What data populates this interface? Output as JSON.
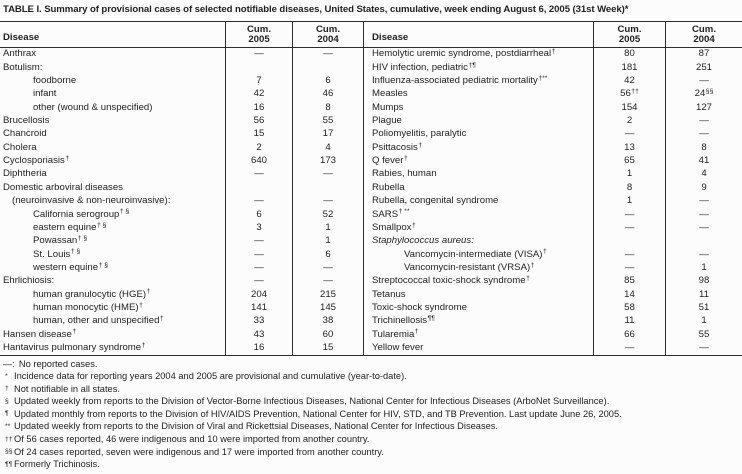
{
  "title": "TABLE I. Summary of provisional cases of selected notifiable diseases, United States, cumulative, week ending August 6, 2005 (31st Week)*",
  "columns": {
    "disease": "Disease",
    "cum_label": "Cum.",
    "y2005": "2005",
    "y2004": "2004"
  },
  "colors": {
    "text": "#1f1f1f",
    "line": "#2e2e2e",
    "background": "#fcfcfc"
  },
  "tables": [
    {
      "side": "left",
      "rows": [
        {
          "label": "Anthrax",
          "v2005": "—",
          "v2004": "—"
        },
        {
          "label": "Botulism:",
          "v2005": "",
          "v2004": ""
        },
        {
          "label": "foodborne",
          "indent": 2,
          "v2005": "7",
          "v2004": "6"
        },
        {
          "label": "infant",
          "indent": 2,
          "v2005": "42",
          "v2004": "46"
        },
        {
          "label": "other (wound & unspecified)",
          "indent": 2,
          "v2005": "16",
          "v2004": "8"
        },
        {
          "label": "Brucellosis",
          "v2005": "56",
          "v2004": "55"
        },
        {
          "label": "Chancroid",
          "v2005": "15",
          "v2004": "17"
        },
        {
          "label": "Cholera",
          "v2005": "2",
          "v2004": "4"
        },
        {
          "label": "Cyclosporiasis",
          "label_sup": "†",
          "v2005": "640",
          "v2004": "173"
        },
        {
          "label": "Diphtheria",
          "v2005": "—",
          "v2004": "—"
        },
        {
          "label": "Domestic arboviral diseases",
          "v2005": "",
          "v2004": ""
        },
        {
          "label": "(neuroinvasive & non-neuroinvasive):",
          "indent": 1,
          "v2005": "—",
          "v2004": "—"
        },
        {
          "label": "California serogroup",
          "label_sup": "† §",
          "indent": 2,
          "v2005": "6",
          "v2004": "52"
        },
        {
          "label": "eastern equine",
          "label_sup": "† §",
          "indent": 2,
          "v2005": "3",
          "v2004": "1"
        },
        {
          "label": "Powassan",
          "label_sup": "† §",
          "indent": 2,
          "v2005": "—",
          "v2004": "1"
        },
        {
          "label": "St. Louis",
          "label_sup": "† §",
          "indent": 2,
          "v2005": "—",
          "v2004": "6"
        },
        {
          "label": "western equine",
          "label_sup": "† §",
          "indent": 2,
          "v2005": "—",
          "v2004": "—"
        },
        {
          "label": "Ehrlichiosis:",
          "v2005": "—",
          "v2004": "—"
        },
        {
          "label": "human granulocytic (HGE)",
          "label_sup": "†",
          "indent": 2,
          "v2005": "204",
          "v2004": "215"
        },
        {
          "label": "human monocytic (HME)",
          "label_sup": "†",
          "indent": 2,
          "v2005": "141",
          "v2004": "145"
        },
        {
          "label": "human, other and unspecified ",
          "label_sup": "†",
          "indent": 2,
          "v2005": "33",
          "v2004": "38"
        },
        {
          "label": "Hansen disease",
          "label_sup": "†",
          "v2005": "43",
          "v2004": "60"
        },
        {
          "label": "Hantavirus pulmonary syndrome",
          "label_sup": "†",
          "v2005": "16",
          "v2004": "15"
        }
      ]
    },
    {
      "side": "right",
      "rows": [
        {
          "label": "Hemolytic uremic syndrome, postdiarrheal",
          "label_sup": "†",
          "v2005": "80",
          "v2004": "87"
        },
        {
          "label": "HIV infection, pediatric",
          "label_sup": "†¶",
          "v2005": "181",
          "v2004": "251"
        },
        {
          "label": "Influenza-associated pediatric mortality",
          "label_sup": "†**",
          "v2005": "42",
          "v2004": "—"
        },
        {
          "label": "Measles",
          "v2005": "56",
          "v2005_sup": "††",
          "v2004": "24",
          "v2004_sup": "§§"
        },
        {
          "label": "Mumps",
          "v2005": "154",
          "v2004": "127"
        },
        {
          "label": "Plague",
          "v2005": "2",
          "v2004": "—"
        },
        {
          "label": "Poliomyelitis, paralytic",
          "v2005": "—",
          "v2004": "—"
        },
        {
          "label": "Psittacosis",
          "label_sup": "†",
          "v2005": "13",
          "v2004": "8"
        },
        {
          "label": "Q fever",
          "label_sup": "†",
          "v2005": "65",
          "v2004": "41"
        },
        {
          "label": "Rabies, human",
          "v2005": "1",
          "v2004": "4"
        },
        {
          "label": "Rubella",
          "v2005": "8",
          "v2004": "9"
        },
        {
          "label": "Rubella, congenital syndrome",
          "v2005": "1",
          "v2004": "—"
        },
        {
          "label": "SARS",
          "label_sup": "† **",
          "v2005": "—",
          "v2004": "—"
        },
        {
          "label": "Smallpox",
          "label_sup": "†",
          "v2005": "—",
          "v2004": "—"
        },
        {
          "label": "Staphylococcus aureus:",
          "italic": true,
          "v2005": "",
          "v2004": ""
        },
        {
          "label": "Vancomycin-intermediate (VISA)",
          "label_sup": "†",
          "indent": 2,
          "v2005": "—",
          "v2004": "—"
        },
        {
          "label": "Vancomycin-resistant (VRSA)",
          "label_sup": "†",
          "indent": 2,
          "v2005": "—",
          "v2004": "1"
        },
        {
          "label": "Streptococcal toxic-shock syndrome",
          "label_sup": "†",
          "v2005": "85",
          "v2004": "98"
        },
        {
          "label": "Tetanus",
          "v2005": "14",
          "v2004": "11"
        },
        {
          "label": "Toxic-shock syndrome",
          "v2005": "58",
          "v2004": "51"
        },
        {
          "label": "Trichinellosis",
          "label_sup": "¶¶",
          "v2005": "11",
          "v2004": "1"
        },
        {
          "label": "Tularemia",
          "label_sup": "†",
          "v2005": "66",
          "v2004": "55"
        },
        {
          "label": "Yellow fever",
          "v2005": "—",
          "v2004": "—"
        }
      ]
    }
  ],
  "footnotes": [
    {
      "marker": "—:",
      "sup": false,
      "text": "No reported cases."
    },
    {
      "marker": "*",
      "sup": true,
      "text": "Incidence data for reporting years 2004 and 2005 are provisional and cumulative (year-to-date)."
    },
    {
      "marker": "†",
      "sup": true,
      "text": "Not notifiable in all states."
    },
    {
      "marker": "§",
      "sup": true,
      "text": "Updated weekly from reports to the Division of Vector-Borne Infectious Diseases, National Center for Infectious Diseases (ArboNet Surveillance)."
    },
    {
      "marker": "¶",
      "sup": true,
      "text": "Updated monthly from reports to the Division of HIV/AIDS Prevention, National Center for HIV, STD, and TB Prevention. Last update June 26, 2005."
    },
    {
      "marker": "**",
      "sup": true,
      "text": "Updated weekly from reports to the Division of Viral and Rickettsial Diseases, National Center for Infectious Diseases."
    },
    {
      "marker": "††",
      "sup": true,
      "text": "Of 56 cases reported, 46 were indigenous and 10 were imported from another country."
    },
    {
      "marker": "§§",
      "sup": true,
      "text": "Of 24 cases reported, seven were indigenous and 17 were imported from another country."
    },
    {
      "marker": "¶¶",
      "sup": true,
      "text": "Formerly Trichinosis."
    }
  ]
}
